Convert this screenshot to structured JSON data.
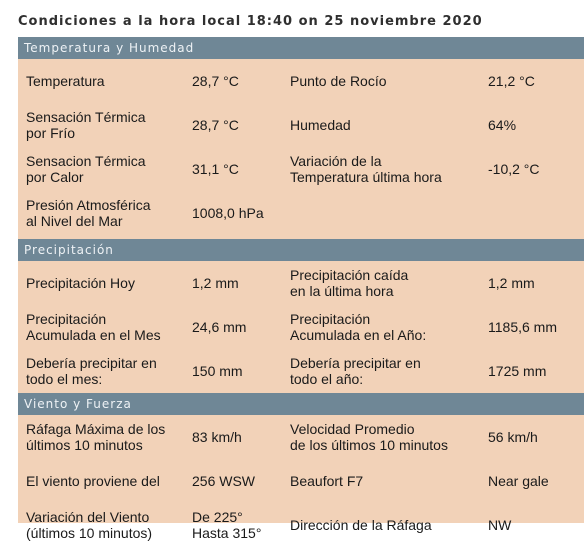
{
  "title": "Condiciones a la hora local 18:40 on 25 noviembre 2020",
  "sections": [
    {
      "header": "Temperatura y Humedad",
      "rows": [
        {
          "l1": [
            "Temperatura"
          ],
          "v1": [
            "28,7 °C"
          ],
          "l2": [
            "Punto de Rocío"
          ],
          "v2": [
            "21,2 °C"
          ]
        },
        {
          "l1": [
            "Sensación Térmica",
            "por Frío"
          ],
          "v1": [
            "28,7 °C"
          ],
          "l2": [
            "Humedad"
          ],
          "v2": [
            "64%"
          ]
        },
        {
          "l1": [
            "Sensacion Térmica",
            "por Calor"
          ],
          "v1": [
            "31,1 °C"
          ],
          "l2": [
            "Variación de la",
            "Temperatura última hora"
          ],
          "v2": [
            "-10,2 °C"
          ]
        },
        {
          "l1": [
            "Presión Atmosférica",
            "al Nivel del Mar"
          ],
          "v1": [
            "1008,0 hPa"
          ],
          "l2": [
            ""
          ],
          "v2": [
            ""
          ]
        }
      ]
    },
    {
      "header": "Precipitación",
      "rows": [
        {
          "l1": [
            "Precipitación Hoy"
          ],
          "v1": [
            "1,2 mm"
          ],
          "l2": [
            "Precipitación caída",
            "en la última hora"
          ],
          "v2": [
            "1,2 mm"
          ]
        },
        {
          "l1": [
            "Precipitación",
            "Acumulada en el Mes"
          ],
          "v1": [
            "24,6 mm"
          ],
          "l2": [
            "Precipitación",
            "Acumulada en el Año:"
          ],
          "v2": [
            "1185,6 mm"
          ]
        },
        {
          "l1": [
            "Debería precipitar en",
            "todo el mes:"
          ],
          "v1": [
            "150 mm"
          ],
          "l2": [
            "Debería precipitar en",
            "todo el año:"
          ],
          "v2": [
            "1725 mm"
          ]
        }
      ]
    },
    {
      "header": "Viento y Fuerza",
      "rows": [
        {
          "l1": [
            "Ráfaga Máxima de los",
            "últimos 10 minutos"
          ],
          "v1": [
            "83 km/h"
          ],
          "l2": [
            "Velocidad Promedio",
            "de los últimos 10 minutos"
          ],
          "v2": [
            "56 km/h"
          ]
        },
        {
          "l1": [
            "El viento proviene del"
          ],
          "v1": [
            "256 WSW"
          ],
          "l2": [
            "Beaufort F7"
          ],
          "v2": [
            "Near gale"
          ]
        },
        {
          "l1": [
            "Variación del Viento",
            "(últimos 10 minutos)"
          ],
          "v1": [
            "De 225°",
            "Hasta 315°"
          ],
          "l2": [
            "Dirección de la Ráfaga"
          ],
          "v2": [
            "NW"
          ]
        }
      ]
    }
  ]
}
